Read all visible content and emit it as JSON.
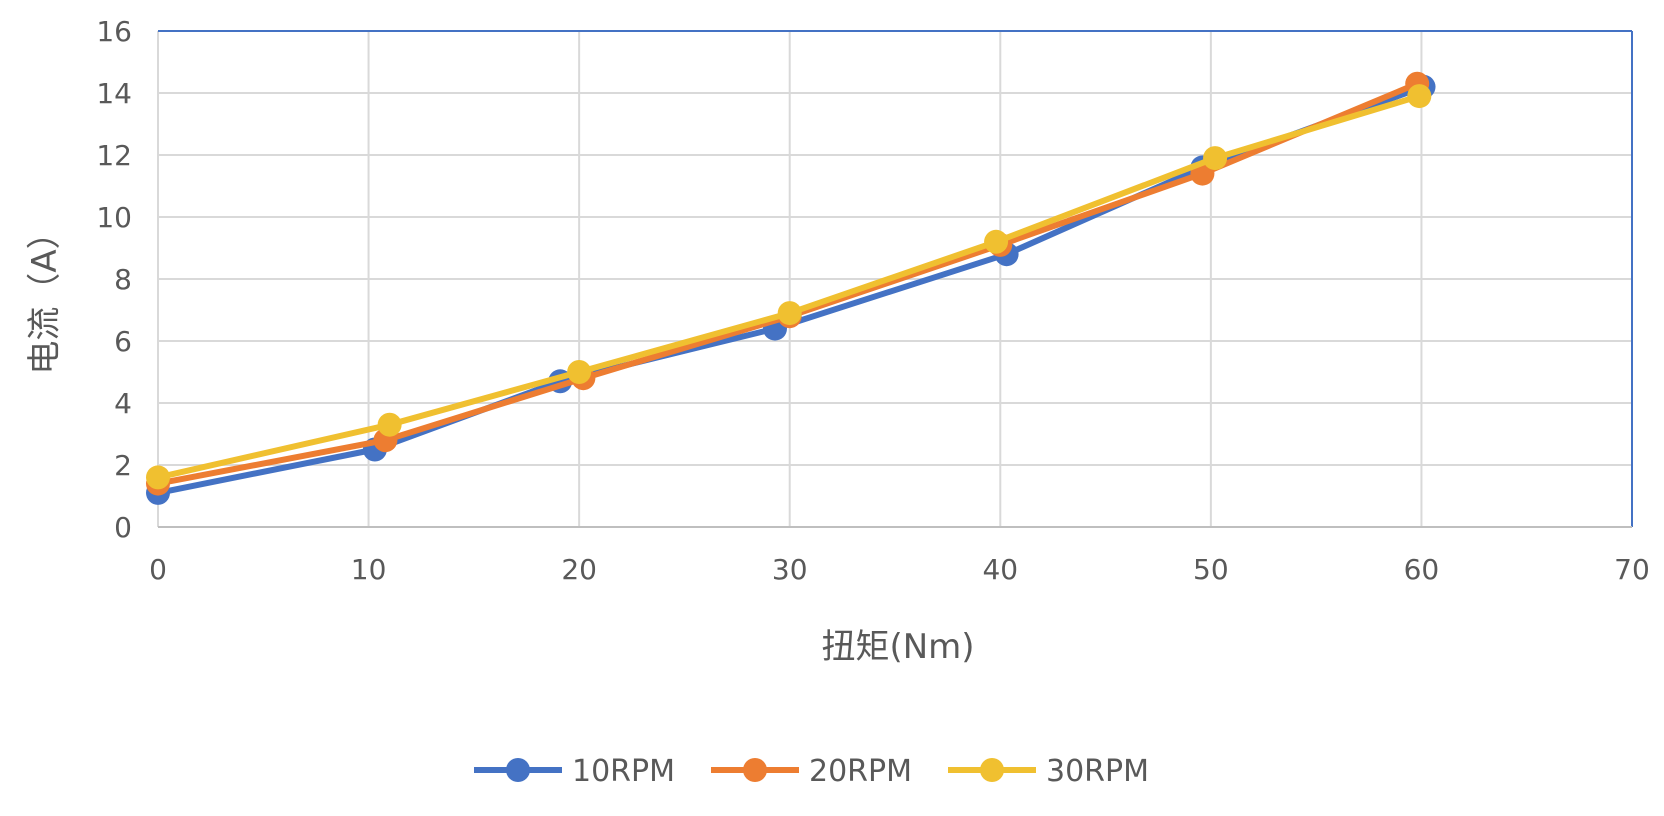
{
  "chart_data": {
    "type": "line",
    "title": "",
    "xlabel": "扭矩(Nm)",
    "ylabel": "电流（A）",
    "xlim": [
      0,
      70
    ],
    "ylim": [
      0,
      16
    ],
    "x_ticks": [
      0,
      10,
      20,
      30,
      40,
      50,
      60,
      70
    ],
    "y_ticks": [
      0,
      2,
      4,
      6,
      8,
      10,
      12,
      14,
      16
    ],
    "grid": true,
    "legend_position": "bottom",
    "series": [
      {
        "name": "10RPM",
        "color": "#4472C4",
        "points": [
          [
            0,
            1.1
          ],
          [
            10.3,
            2.5
          ],
          [
            19.1,
            4.7
          ],
          [
            29.3,
            6.4
          ],
          [
            40.3,
            8.8
          ],
          [
            49.6,
            11.6
          ],
          [
            60.1,
            14.2
          ]
        ]
      },
      {
        "name": "20RPM",
        "color": "#ED7D31",
        "points": [
          [
            0,
            1.4
          ],
          [
            10.8,
            2.8
          ],
          [
            20.2,
            4.8
          ],
          [
            30.0,
            6.8
          ],
          [
            40.0,
            9.1
          ],
          [
            49.6,
            11.4
          ],
          [
            59.8,
            14.3
          ]
        ]
      },
      {
        "name": "30RPM",
        "color": "#F0C030",
        "points": [
          [
            0,
            1.6
          ],
          [
            11.0,
            3.3
          ],
          [
            20.0,
            5.0
          ],
          [
            30.0,
            6.9
          ],
          [
            39.8,
            9.2
          ],
          [
            50.2,
            11.9
          ],
          [
            59.9,
            13.9
          ]
        ]
      }
    ]
  }
}
